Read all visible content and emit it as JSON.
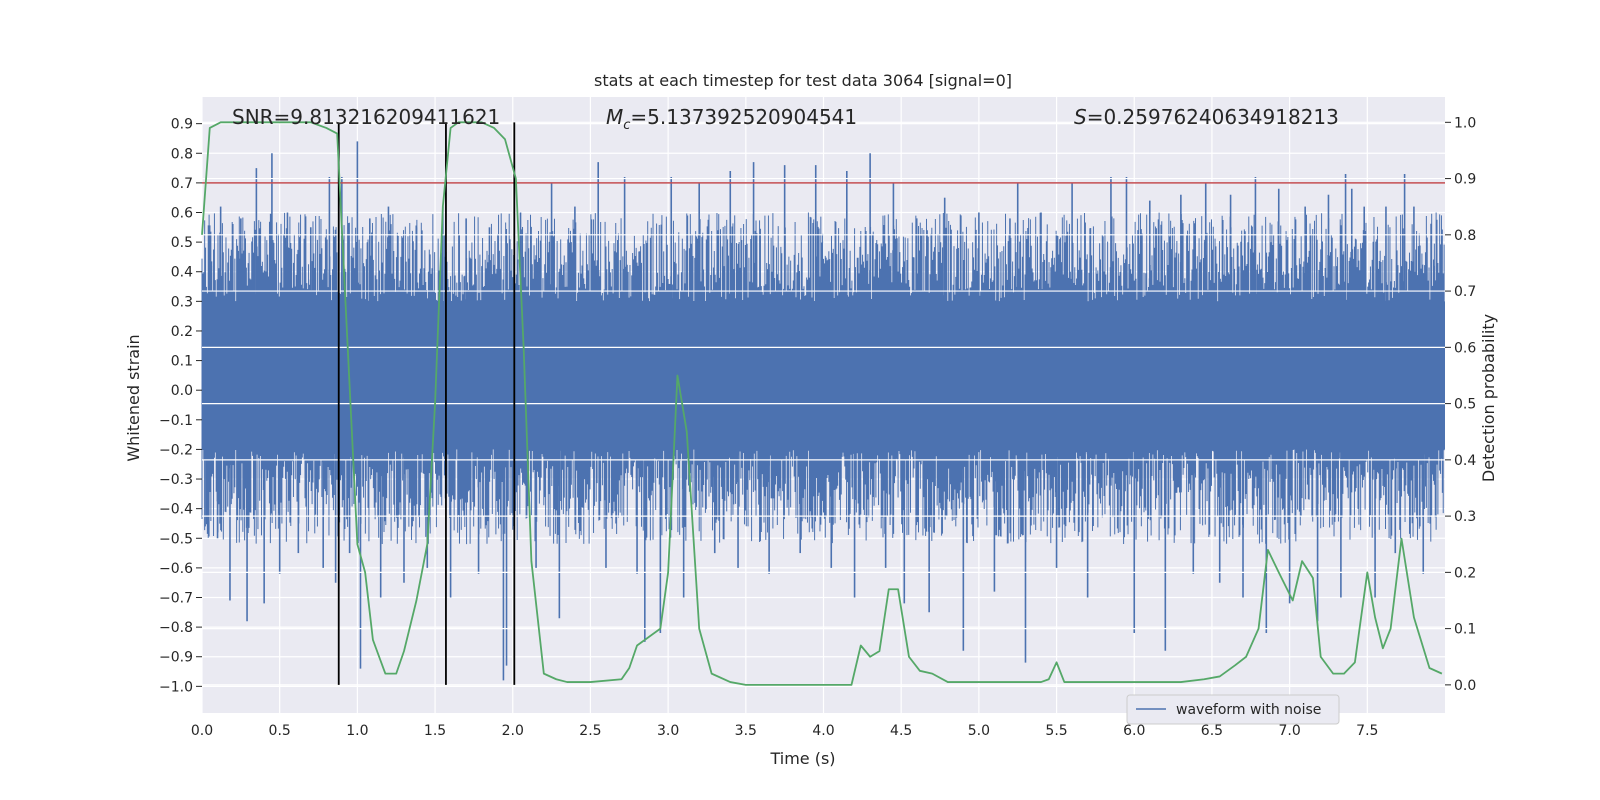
{
  "chart_data": {
    "type": "line",
    "title": "stats at each timestep for test data 3064 [signal=0]",
    "xlabel": "Time (s)",
    "ylabel_left": "Whitened strain",
    "ylabel_right": "Detection probability",
    "xlim": [
      0.0,
      8.0
    ],
    "ylim_left": [
      -1.09,
      0.99
    ],
    "ylim_right": [
      -0.05,
      1.045
    ],
    "xticks": [
      "0.0",
      "0.5",
      "1.0",
      "1.5",
      "2.0",
      "2.5",
      "3.0",
      "3.5",
      "4.0",
      "4.5",
      "5.0",
      "5.5",
      "6.0",
      "6.5",
      "7.0",
      "7.5"
    ],
    "yticks_left": [
      "0.9",
      "0.8",
      "0.7",
      "0.6",
      "0.5",
      "0.4",
      "0.3",
      "0.2",
      "0.1",
      "0.0",
      "-0.1",
      "-0.2",
      "-0.3",
      "-0.4",
      "-0.5",
      "-0.6",
      "-0.7",
      "-0.8",
      "-0.9",
      "-1.0"
    ],
    "yticks_right": [
      "1.0",
      "0.9",
      "0.8",
      "0.7",
      "0.6",
      "0.5",
      "0.4",
      "0.3",
      "0.2",
      "0.1",
      "0.0"
    ],
    "grid": true,
    "legend": {
      "position": "bottom-right",
      "entries": [
        "waveform with noise"
      ]
    },
    "annotations": {
      "snr": "SNR=9.813216209411621",
      "mc_symbol": "M",
      "mc_sub": "c",
      "mc_value": "=5.137392520904541",
      "s_symbol": "S",
      "s_value": "=0.25976240634918213"
    },
    "threshold_line": {
      "y": 0.7,
      "color": "#c44e52"
    },
    "vertical_lines": [
      0.88,
      1.57,
      2.01
    ],
    "waveform": {
      "name": "waveform with noise",
      "color": "#4c72b0",
      "band": [
        -0.2,
        0.3
      ],
      "spikes": [
        {
          "x": 0.02,
          "v": -0.46
        },
        {
          "x": 0.06,
          "v": 0.42
        },
        {
          "x": 0.1,
          "v": -0.5
        },
        {
          "x": 0.12,
          "v": 0.62
        },
        {
          "x": 0.18,
          "v": -0.71
        },
        {
          "x": 0.25,
          "v": 0.58
        },
        {
          "x": 0.29,
          "v": -0.78
        },
        {
          "x": 0.35,
          "v": 0.75
        },
        {
          "x": 0.4,
          "v": -0.72
        },
        {
          "x": 0.45,
          "v": 0.8
        },
        {
          "x": 0.5,
          "v": -0.62
        },
        {
          "x": 0.55,
          "v": 0.6
        },
        {
          "x": 0.62,
          "v": -0.55
        },
        {
          "x": 0.7,
          "v": 0.55
        },
        {
          "x": 0.78,
          "v": -0.6
        },
        {
          "x": 0.82,
          "v": 0.72
        },
        {
          "x": 0.86,
          "v": -0.65
        },
        {
          "x": 0.9,
          "v": 0.72
        },
        {
          "x": 0.95,
          "v": -0.55
        },
        {
          "x": 1.0,
          "v": 0.84
        },
        {
          "x": 1.02,
          "v": -0.94
        },
        {
          "x": 1.08,
          "v": 0.58
        },
        {
          "x": 1.15,
          "v": -0.7
        },
        {
          "x": 1.2,
          "v": 0.62
        },
        {
          "x": 1.3,
          "v": -0.65
        },
        {
          "x": 1.38,
          "v": 0.55
        },
        {
          "x": 1.45,
          "v": -0.6
        },
        {
          "x": 1.55,
          "v": 0.62
        },
        {
          "x": 1.6,
          "v": -0.7
        },
        {
          "x": 1.7,
          "v": 0.58
        },
        {
          "x": 1.78,
          "v": -0.62
        },
        {
          "x": 1.85,
          "v": 0.55
        },
        {
          "x": 1.94,
          "v": -0.98
        },
        {
          "x": 1.96,
          "v": -0.93
        },
        {
          "x": 2.05,
          "v": 0.6
        },
        {
          "x": 2.15,
          "v": -0.6
        },
        {
          "x": 2.25,
          "v": 0.7
        },
        {
          "x": 2.3,
          "v": -0.77
        },
        {
          "x": 2.4,
          "v": 0.62
        },
        {
          "x": 2.55,
          "v": 0.77
        },
        {
          "x": 2.6,
          "v": -0.6
        },
        {
          "x": 2.72,
          "v": 0.72
        },
        {
          "x": 2.8,
          "v": -0.62
        },
        {
          "x": 2.85,
          "v": -0.85
        },
        {
          "x": 2.95,
          "v": -0.82
        },
        {
          "x": 3.02,
          "v": 0.72
        },
        {
          "x": 3.1,
          "v": -0.7
        },
        {
          "x": 3.2,
          "v": 0.7
        },
        {
          "x": 3.3,
          "v": -0.55
        },
        {
          "x": 3.4,
          "v": 0.74
        },
        {
          "x": 3.45,
          "v": -0.6
        },
        {
          "x": 3.55,
          "v": 0.77
        },
        {
          "x": 3.65,
          "v": -0.62
        },
        {
          "x": 3.75,
          "v": 0.76
        },
        {
          "x": 3.85,
          "v": -0.55
        },
        {
          "x": 3.95,
          "v": 0.76
        },
        {
          "x": 4.05,
          "v": -0.6
        },
        {
          "x": 4.15,
          "v": 0.74
        },
        {
          "x": 4.2,
          "v": -0.7
        },
        {
          "x": 4.3,
          "v": 0.8
        },
        {
          "x": 4.4,
          "v": -0.6
        },
        {
          "x": 4.45,
          "v": 0.7
        },
        {
          "x": 4.52,
          "v": -0.72
        },
        {
          "x": 4.6,
          "v": 0.58
        },
        {
          "x": 4.68,
          "v": -0.75
        },
        {
          "x": 4.78,
          "v": 0.65
        },
        {
          "x": 4.9,
          "v": -0.88
        },
        {
          "x": 5.0,
          "v": 0.6
        },
        {
          "x": 5.1,
          "v": -0.68
        },
        {
          "x": 5.2,
          "v": 0.58
        },
        {
          "x": 5.25,
          "v": 0.7
        },
        {
          "x": 5.3,
          "v": -0.92
        },
        {
          "x": 5.4,
          "v": 0.6
        },
        {
          "x": 5.5,
          "v": -0.6
        },
        {
          "x": 5.6,
          "v": 0.7
        },
        {
          "x": 5.7,
          "v": -0.7
        },
        {
          "x": 5.85,
          "v": 0.72
        },
        {
          "x": 5.95,
          "v": 0.72
        },
        {
          "x": 6.0,
          "v": -0.82
        },
        {
          "x": 6.1,
          "v": 0.64
        },
        {
          "x": 6.2,
          "v": -0.88
        },
        {
          "x": 6.3,
          "v": 0.66
        },
        {
          "x": 6.38,
          "v": -0.62
        },
        {
          "x": 6.46,
          "v": 0.7
        },
        {
          "x": 6.55,
          "v": -0.65
        },
        {
          "x": 6.62,
          "v": 0.66
        },
        {
          "x": 6.7,
          "v": -0.7
        },
        {
          "x": 6.78,
          "v": 0.72
        },
        {
          "x": 6.85,
          "v": -0.82
        },
        {
          "x": 6.93,
          "v": 0.68
        },
        {
          "x": 7.0,
          "v": -0.72
        },
        {
          "x": 7.1,
          "v": 0.62
        },
        {
          "x": 7.18,
          "v": -0.78
        },
        {
          "x": 7.25,
          "v": 0.66
        },
        {
          "x": 7.33,
          "v": -0.7
        },
        {
          "x": 7.36,
          "v": 0.73
        },
        {
          "x": 7.4,
          "v": 0.68
        },
        {
          "x": 7.48,
          "v": 0.62
        },
        {
          "x": 7.55,
          "v": -0.7
        },
        {
          "x": 7.62,
          "v": 0.62
        },
        {
          "x": 7.68,
          "v": -0.55
        },
        {
          "x": 7.74,
          "v": 0.73
        },
        {
          "x": 7.8,
          "v": 0.62
        },
        {
          "x": 7.86,
          "v": -0.62
        },
        {
          "x": 7.93,
          "v": 0.42
        }
      ]
    },
    "probability": {
      "color": "#55a868",
      "x": [
        0.0,
        0.05,
        0.12,
        0.25,
        0.4,
        0.55,
        0.7,
        0.8,
        0.87,
        0.92,
        1.0,
        1.05,
        1.1,
        1.18,
        1.25,
        1.3,
        1.38,
        1.45,
        1.5,
        1.55,
        1.6,
        1.65,
        1.72,
        1.8,
        1.88,
        1.95,
        2.02,
        2.07,
        2.12,
        2.2,
        2.28,
        2.35,
        2.5,
        2.7,
        2.75,
        2.8,
        2.85,
        2.95,
        3.0,
        3.06,
        3.12,
        3.2,
        3.28,
        3.4,
        3.5,
        3.7,
        3.9,
        4.0,
        4.1,
        4.18,
        4.24,
        4.3,
        4.36,
        4.42,
        4.48,
        4.55,
        4.62,
        4.7,
        4.8,
        4.9,
        5.0,
        5.2,
        5.4,
        5.45,
        5.5,
        5.55,
        5.7,
        5.9,
        6.1,
        6.3,
        6.45,
        6.55,
        6.65,
        6.72,
        6.8,
        6.86,
        6.93,
        7.02,
        7.08,
        7.15,
        7.2,
        7.28,
        7.35,
        7.42,
        7.5,
        7.55,
        7.6,
        7.65,
        7.72,
        7.8,
        7.9,
        7.98
      ],
      "y": [
        0.8,
        0.99,
        1.0,
        1.0,
        1.0,
        1.0,
        1.0,
        0.99,
        0.98,
        0.7,
        0.25,
        0.2,
        0.08,
        0.02,
        0.02,
        0.06,
        0.15,
        0.25,
        0.5,
        0.85,
        0.99,
        1.0,
        1.0,
        1.0,
        0.99,
        0.97,
        0.9,
        0.6,
        0.22,
        0.02,
        0.01,
        0.005,
        0.005,
        0.01,
        0.03,
        0.07,
        0.08,
        0.1,
        0.2,
        0.55,
        0.45,
        0.1,
        0.02,
        0.005,
        0.0,
        0.0,
        0.0,
        0.0,
        0.0,
        0.0,
        0.07,
        0.05,
        0.06,
        0.17,
        0.17,
        0.05,
        0.025,
        0.02,
        0.005,
        0.005,
        0.005,
        0.005,
        0.005,
        0.01,
        0.04,
        0.005,
        0.005,
        0.005,
        0.005,
        0.005,
        0.01,
        0.015,
        0.035,
        0.05,
        0.1,
        0.24,
        0.2,
        0.15,
        0.22,
        0.19,
        0.05,
        0.02,
        0.02,
        0.04,
        0.2,
        0.12,
        0.065,
        0.1,
        0.26,
        0.12,
        0.03,
        0.02
      ]
    }
  }
}
